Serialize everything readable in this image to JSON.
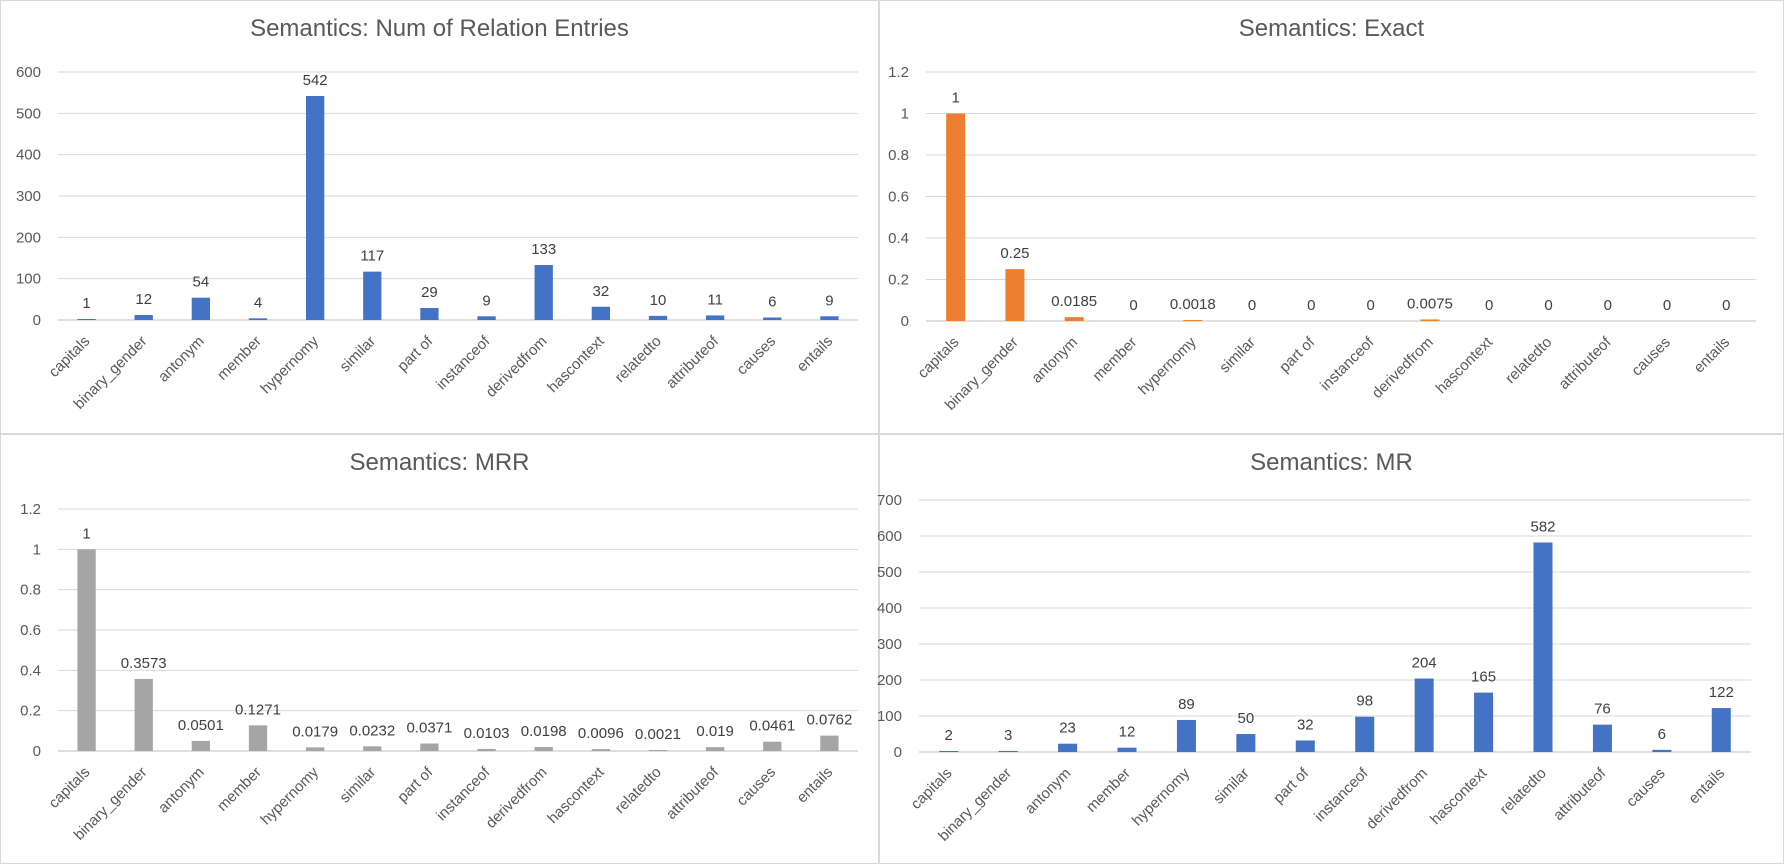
{
  "chart_data": [
    {
      "type": "bar",
      "title": "Semantics: Num of Relation Entries",
      "categories": [
        "capitals",
        "binary_gender",
        "antonym",
        "member",
        "hypernomy",
        "similar",
        "part of",
        "instanceof",
        "derivedfrom",
        "hascontext",
        "relatedto",
        "attributeof",
        "causes",
        "entails"
      ],
      "values": [
        1,
        12,
        54,
        4,
        542,
        117,
        29,
        9,
        133,
        32,
        10,
        11,
        6,
        9
      ],
      "labels": [
        "1",
        "12",
        "54",
        "4",
        "542",
        "117",
        "29",
        "9",
        "133",
        "32",
        "10",
        "11",
        "6",
        "9"
      ],
      "yticks": [
        "0",
        "100",
        "200",
        "300",
        "400",
        "500",
        "600"
      ],
      "ylim": [
        0,
        600
      ],
      "color": "#4472C4",
      "grid": true,
      "legend": "none"
    },
    {
      "type": "bar",
      "title": "Semantics: Exact",
      "categories": [
        "capitals",
        "binary_gender",
        "antonym",
        "member",
        "hypernomy",
        "similar",
        "part of",
        "instanceof",
        "derivedfrom",
        "hascontext",
        "relatedto",
        "attributeof",
        "causes",
        "entails"
      ],
      "values": [
        1,
        0.25,
        0.0185,
        0,
        0.0018,
        0,
        0,
        0,
        0.0075,
        0,
        0,
        0,
        0,
        0
      ],
      "labels": [
        "1",
        "0.25",
        "0.0185",
        "0",
        "0.0018",
        "0",
        "0",
        "0",
        "0.0075",
        "0",
        "0",
        "0",
        "0",
        "0"
      ],
      "yticks": [
        "0",
        "0.2",
        "0.4",
        "0.6",
        "0.8",
        "1",
        "1.2"
      ],
      "ylim": [
        0,
        1.2
      ],
      "color": "#ED7D31",
      "grid": true,
      "legend": "none"
    },
    {
      "type": "bar",
      "title": "Semantics: MRR",
      "categories": [
        "capitals",
        "binary_gender",
        "antonym",
        "member",
        "hypernomy",
        "similar",
        "part of",
        "instanceof",
        "derivedfrom",
        "hascontext",
        "relatedto",
        "attributeof",
        "causes",
        "entails"
      ],
      "values": [
        1,
        0.3573,
        0.0501,
        0.1271,
        0.0179,
        0.0232,
        0.0371,
        0.0103,
        0.0198,
        0.0096,
        0.0021,
        0.019,
        0.0461,
        0.0762
      ],
      "labels": [
        "1",
        "0.3573",
        "0.0501",
        "0.1271",
        "0.0179",
        "0.0232",
        "0.0371",
        "0.0103",
        "0.0198",
        "0.0096",
        "0.0021",
        "0.019",
        "0.0461",
        "0.0762"
      ],
      "yticks": [
        "0",
        "0.2",
        "0.4",
        "0.6",
        "0.8",
        "1",
        "1.2"
      ],
      "ylim": [
        0,
        1.2
      ],
      "color": "#A5A5A5",
      "grid": true,
      "legend": "none"
    },
    {
      "type": "bar",
      "title": "Semantics: MR",
      "categories": [
        "capitals",
        "binary_gender",
        "antonym",
        "member",
        "hypernomy",
        "similar",
        "part of",
        "instanceof",
        "derivedfrom",
        "hascontext",
        "relatedto",
        "attributeof",
        "causes",
        "entails"
      ],
      "values": [
        2,
        3,
        23,
        12,
        89,
        50,
        32,
        98,
        204,
        165,
        582,
        76,
        6,
        122
      ],
      "labels": [
        "2",
        "3",
        "23",
        "12",
        "89",
        "50",
        "32",
        "98",
        "204",
        "165",
        "582",
        "76",
        "6",
        "122"
      ],
      "yticks": [
        "0",
        "100",
        "200",
        "300",
        "400",
        "500",
        "600",
        "700"
      ],
      "ylim": [
        0,
        700
      ],
      "color": "#4472C4",
      "grid": true,
      "legend": "none"
    }
  ]
}
